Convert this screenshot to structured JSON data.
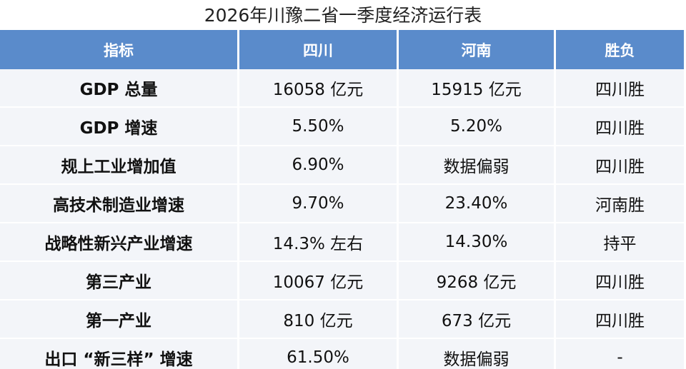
{
  "title": "2026年川豫二省一季度经济运行表",
  "table": {
    "header": [
      "指标",
      "四川",
      "河南",
      "胜负"
    ],
    "rows": [
      [
        "GDP 总量",
        "16058 亿元",
        "15915 亿元",
        "四川胜"
      ],
      [
        "GDP 增速",
        "5.50%",
        "5.20%",
        "四川胜"
      ],
      [
        "规上工业增加值",
        "6.90%",
        "数据偏弱",
        "四川胜"
      ],
      [
        "高技术制造业增速",
        "9.70%",
        "23.40%",
        "河南胜"
      ],
      [
        "战略性新兴产业增速",
        "14.3% 左右",
        "14.30%",
        "持平"
      ],
      [
        "第三产业",
        "10067 亿元",
        "9268 亿元",
        "四川胜"
      ],
      [
        "第一产业",
        "810 亿元",
        "673 亿元",
        "四川胜"
      ],
      [
        "出口 “新三样” 增速",
        "61.50%",
        "数据偏弱",
        "-"
      ]
    ]
  }
}
